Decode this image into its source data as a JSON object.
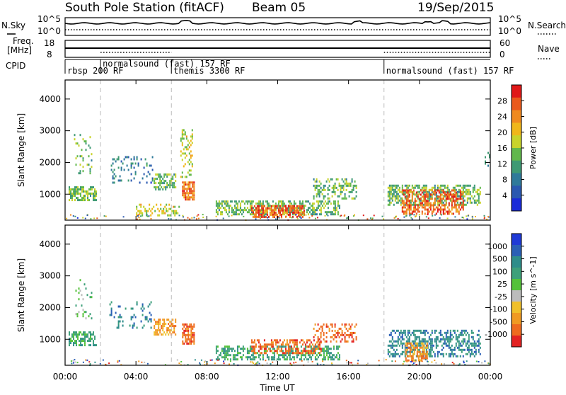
{
  "header": {
    "station": "South Pole Station (fitACF)",
    "beam": "Beam 05",
    "date": "19/Sep/2015"
  },
  "strip_sky": {
    "left_label": "N.Sky",
    "left_ticks": [
      "10^5",
      "10^0"
    ],
    "right_label": "N.Search",
    "right_ticks": [
      "10^5",
      "10^0"
    ]
  },
  "strip_freq": {
    "left_label_1": "Freq.",
    "left_label_2": "[MHz]",
    "left_ticks": [
      "18",
      "8"
    ],
    "right_label": "Nave",
    "right_ticks": [
      "60",
      "0"
    ]
  },
  "cpid": {
    "label": "CPID",
    "modes": [
      {
        "text": "rbsp 200 RF",
        "start_hour": 0
      },
      {
        "text": "normalsound (fast) 157 RF",
        "start_hour": 2
      },
      {
        "text": "themis 3300 RF",
        "start_hour": 6
      },
      {
        "text": "normalsound (fast) 157 RF",
        "start_hour": 18
      }
    ]
  },
  "colors": {
    "power": [
      "#1a2bd8",
      "#2a58b0",
      "#2f7a9a",
      "#3f9a74",
      "#61b84c",
      "#c8d32b",
      "#f0b61a",
      "#f08a1f",
      "#ea5a1c",
      "#e01818"
    ],
    "velocity": [
      "#1f3ad6",
      "#2a5fb6",
      "#2e8d8a",
      "#3ea07a",
      "#54c23a",
      "#bcbcbc",
      "#f0c02a",
      "#f09a22",
      "#ee6a1e",
      "#e32222"
    ]
  },
  "chart_data": [
    {
      "type": "heatmap",
      "title": "Power",
      "ylabel": "Slant Range [km]",
      "x_ticks": [
        "00:00",
        "04:00",
        "08:00",
        "12:00",
        "16:00",
        "20:00",
        "00:00"
      ],
      "y_ticks": [
        1000,
        2000,
        3000,
        4000
      ],
      "xlim_hours": [
        0,
        24
      ],
      "ylim": [
        180,
        4600
      ],
      "colorbar": {
        "label": "Power [dB]",
        "ticks": [
          4,
          8,
          12,
          16,
          20,
          24,
          28
        ],
        "range": [
          0,
          32
        ]
      },
      "regions": [
        {
          "hours": [
            0.2,
            1.8
          ],
          "range_km": [
            750,
            1250
          ],
          "value_db": 14,
          "density": 0.6
        },
        {
          "hours": [
            0.5,
            1.5
          ],
          "range_km": [
            1600,
            2900
          ],
          "value_db": 14,
          "density": 0.15
        },
        {
          "hours": [
            2.5,
            5.0
          ],
          "range_km": [
            1300,
            2200
          ],
          "value_db": 8,
          "density": 0.15
        },
        {
          "hours": [
            5.0,
            6.3
          ],
          "range_km": [
            1100,
            1650
          ],
          "value_db": 14,
          "density": 0.55
        },
        {
          "hours": [
            6.6,
            7.3
          ],
          "range_km": [
            800,
            1400
          ],
          "value_db": 26,
          "density": 0.7
        },
        {
          "hours": [
            6.5,
            7.2
          ],
          "range_km": [
            1500,
            3050
          ],
          "value_db": 18,
          "density": 0.25
        },
        {
          "hours": [
            4.0,
            6.5
          ],
          "range_km": [
            300,
            700
          ],
          "value_db": 18,
          "density": 0.35
        },
        {
          "hours": [
            8.5,
            15.5
          ],
          "range_km": [
            300,
            800
          ],
          "value_db": 14,
          "density": 0.55
        },
        {
          "hours": [
            10.5,
            13.5
          ],
          "range_km": [
            250,
            650
          ],
          "value_db": 27,
          "density": 0.65
        },
        {
          "hours": [
            14.0,
            16.5
          ],
          "range_km": [
            800,
            1500
          ],
          "value_db": 14,
          "density": 0.35
        },
        {
          "hours": [
            18.2,
            23.5
          ],
          "range_km": [
            650,
            1300
          ],
          "value_db": 14,
          "density": 0.55
        },
        {
          "hours": [
            19.0,
            22.5
          ],
          "range_km": [
            350,
            1150
          ],
          "value_db": 27,
          "density": 0.5
        },
        {
          "hours": [
            23.6,
            24.0
          ],
          "range_km": [
            1800,
            2400
          ],
          "value_db": 8,
          "density": 0.2
        }
      ]
    },
    {
      "type": "heatmap",
      "title": "Velocity",
      "ylabel": "Slant Range [km]",
      "x_ticks": [
        "00:00",
        "04:00",
        "08:00",
        "12:00",
        "16:00",
        "20:00",
        "00:00"
      ],
      "xlabel": "Time UT",
      "y_ticks": [
        1000,
        2000,
        3000,
        4000
      ],
      "xlim_hours": [
        0,
        24
      ],
      "ylim": [
        180,
        4600
      ],
      "colorbar": {
        "label": "Velocity [m s^-1]",
        "ticks": [
          "1000",
          "500",
          "100",
          "25",
          "-25",
          "-100",
          "-500",
          "-1000"
        ]
      },
      "regions": [
        {
          "hours": [
            0.2,
            1.8
          ],
          "range_km": [
            750,
            1250
          ],
          "value_class": 3,
          "density": 0.6
        },
        {
          "hours": [
            0.5,
            1.5
          ],
          "range_km": [
            1600,
            2900
          ],
          "value_class": 4,
          "density": 0.15
        },
        {
          "hours": [
            2.5,
            5.0
          ],
          "range_km": [
            1300,
            2200
          ],
          "value_class": 2,
          "density": 0.15
        },
        {
          "hours": [
            5.0,
            6.3
          ],
          "range_km": [
            1100,
            1650
          ],
          "value_class": 7,
          "density": 0.55
        },
        {
          "hours": [
            6.6,
            7.3
          ],
          "range_km": [
            800,
            1500
          ],
          "value_class": 8,
          "density": 0.7
        },
        {
          "hours": [
            8.5,
            15.5
          ],
          "range_km": [
            300,
            800
          ],
          "value_class": 3,
          "density": 0.5
        },
        {
          "hours": [
            10.5,
            14.5
          ],
          "range_km": [
            500,
            1000
          ],
          "value_class": 8,
          "density": 0.45
        },
        {
          "hours": [
            14.0,
            16.5
          ],
          "range_km": [
            900,
            1500
          ],
          "value_class": 8,
          "density": 0.35
        },
        {
          "hours": [
            18.2,
            23.5
          ],
          "range_km": [
            400,
            1300
          ],
          "value_class": 2,
          "density": 0.5
        },
        {
          "hours": [
            19.2,
            20.5
          ],
          "range_km": [
            300,
            900
          ],
          "value_class": 7,
          "density": 0.6
        }
      ]
    }
  ]
}
